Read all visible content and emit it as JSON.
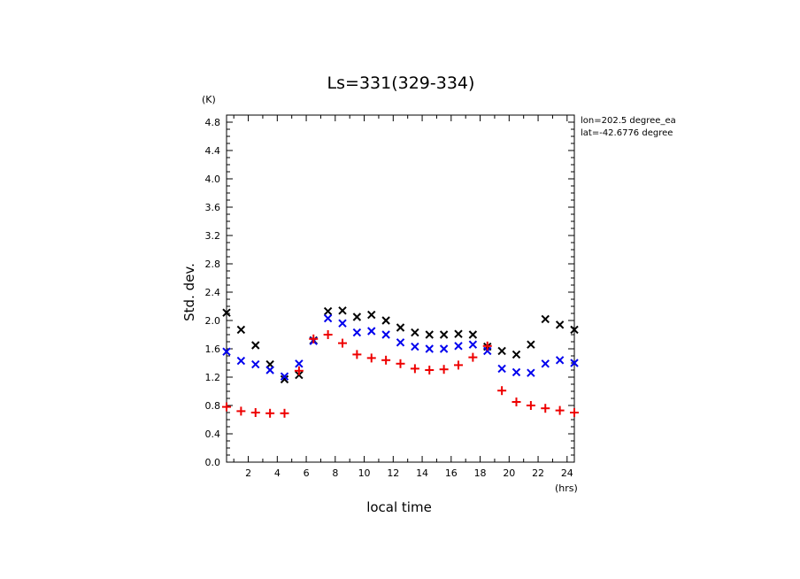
{
  "chart_data": {
    "type": "scatter",
    "title": "Ls=331(329-334)",
    "xlabel": "local time",
    "ylabel": "Std. dev.",
    "x_unit": "(hrs)",
    "y_unit": "(K)",
    "xlim": [
      0.5,
      24.5
    ],
    "ylim": [
      0.0,
      4.9
    ],
    "xticks": [
      "2",
      "4",
      "6",
      "8",
      "10",
      "12",
      "14",
      "16",
      "18",
      "20",
      "22",
      "24"
    ],
    "yticks": [
      "0.0",
      "0.4",
      "0.8",
      "1.2",
      "1.6",
      "2.0",
      "2.4",
      "2.8",
      "3.2",
      "3.6",
      "4.0",
      "4.4",
      "4.8"
    ],
    "annotations": [
      "lon=202.5 degree_ea",
      "lat=-42.6776 degree"
    ],
    "x": [
      0.5,
      1.5,
      2.5,
      3.5,
      4.5,
      5.5,
      6.5,
      7.5,
      8.5,
      9.5,
      10.5,
      11.5,
      12.5,
      13.5,
      14.5,
      15.5,
      16.5,
      17.5,
      18.5,
      19.5,
      20.5,
      21.5,
      22.5,
      23.5,
      24.5
    ],
    "series": [
      {
        "marker": "x",
        "color": "#000000",
        "values": [
          2.11,
          1.87,
          1.65,
          1.38,
          1.17,
          1.23,
          1.72,
          2.13,
          2.14,
          2.05,
          2.08,
          2.0,
          1.9,
          1.83,
          1.8,
          1.8,
          1.81,
          1.8,
          1.63,
          1.57,
          1.52,
          1.66,
          2.02,
          1.94,
          1.87
        ]
      },
      {
        "marker": "x",
        "color": "#0000ee",
        "values": [
          1.56,
          1.43,
          1.38,
          1.3,
          1.21,
          1.39,
          1.71,
          2.03,
          1.96,
          1.83,
          1.85,
          1.8,
          1.69,
          1.63,
          1.6,
          1.6,
          1.64,
          1.66,
          1.57,
          1.32,
          1.27,
          1.26,
          1.39,
          1.44,
          1.4
        ]
      },
      {
        "marker": "+",
        "color": "#ee0000",
        "values": [
          0.78,
          0.72,
          0.7,
          0.69,
          0.69,
          1.29,
          1.74,
          1.8,
          1.68,
          1.52,
          1.47,
          1.44,
          1.39,
          1.32,
          1.3,
          1.31,
          1.37,
          1.48,
          1.64,
          1.01,
          0.85,
          0.8,
          0.76,
          0.73,
          0.7
        ]
      }
    ]
  }
}
